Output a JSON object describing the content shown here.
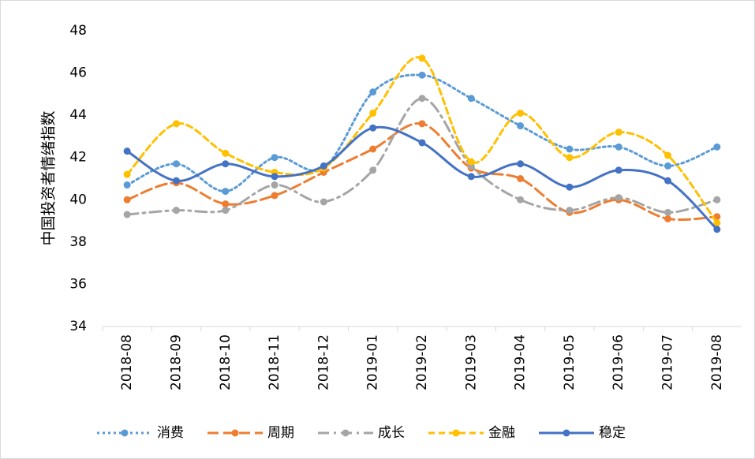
{
  "chart_data": {
    "type": "line",
    "smooth": true,
    "y_label": "中国投资者情绪指数",
    "categories": [
      "2018-08",
      "2018-09",
      "2018-10",
      "2018-11",
      "2018-12",
      "2019-01",
      "2019-02",
      "2019-03",
      "2019-04",
      "2019-05",
      "2019-06",
      "2019-07",
      "2019-08"
    ],
    "series": [
      {
        "name": "消费",
        "color": "#5B9BD5",
        "values": [
          40.7,
          41.7,
          40.4,
          42.0,
          41.5,
          45.1,
          45.9,
          44.8,
          43.5,
          42.4,
          42.5,
          41.6,
          42.5
        ]
      },
      {
        "name": "周期",
        "color": "#ED7D31",
        "values": [
          40.0,
          40.8,
          39.8,
          40.2,
          41.3,
          42.4,
          43.6,
          41.5,
          41.0,
          39.4,
          40.0,
          39.1,
          39.2
        ]
      },
      {
        "name": "成长",
        "color": "#A5A5A5",
        "values": [
          39.3,
          39.5,
          39.5,
          40.7,
          39.9,
          41.4,
          44.8,
          41.6,
          40.0,
          39.5,
          40.1,
          39.4,
          40.0
        ]
      },
      {
        "name": "金融",
        "color": "#FFC000",
        "values": [
          41.2,
          43.6,
          42.2,
          41.3,
          41.5,
          44.1,
          46.7,
          41.8,
          44.1,
          42.0,
          43.2,
          42.1,
          38.9
        ]
      },
      {
        "name": "稳定",
        "color": "#4472C4",
        "values": [
          42.3,
          40.9,
          41.7,
          41.1,
          41.6,
          43.4,
          42.7,
          41.1,
          41.7,
          40.6,
          41.4,
          40.9,
          38.6
        ]
      }
    ],
    "ylim": [
      34,
      48
    ],
    "yticks": [
      34,
      36,
      38,
      40,
      42,
      44,
      46,
      48
    ],
    "grid": false,
    "legend": "bottom"
  }
}
